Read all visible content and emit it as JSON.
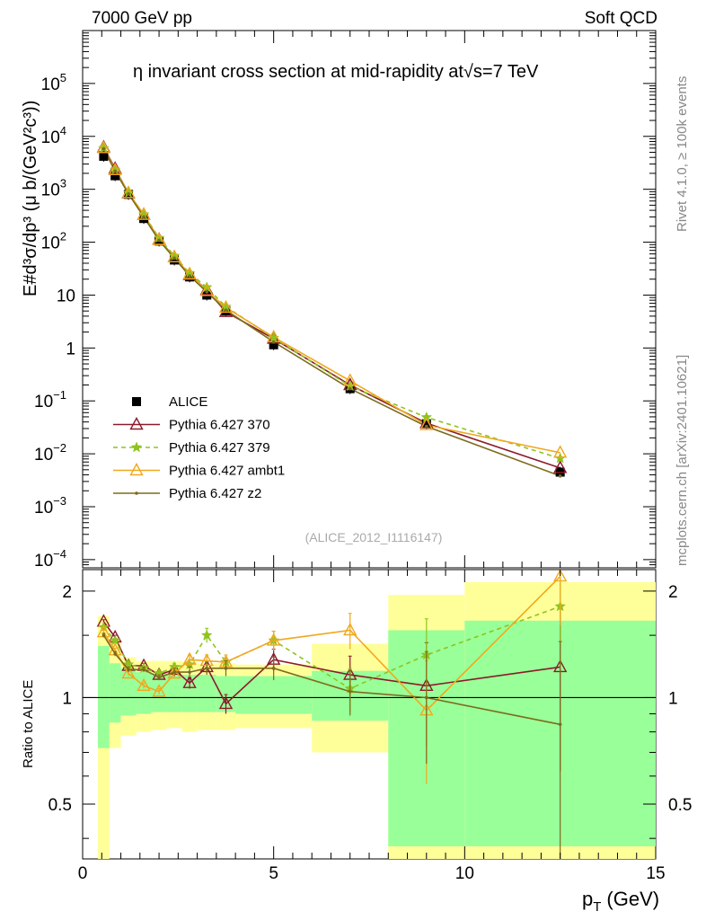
{
  "header": {
    "left": "7000 GeV pp",
    "right": "Soft QCD"
  },
  "side_text": {
    "rivet": "Rivet 4.1.0, ≥ 100k events",
    "mcplots": "mcplots.cern.ch [arXiv:2401.10621]"
  },
  "chart_data": {
    "type": "line",
    "title": "η invariant cross section at mid-rapidity at√s=7 TeV",
    "watermark": "(ALICE_2012_I1116147)",
    "xlabel_main": "p",
    "xlabel_sub": "T",
    "xlabel_unit": "(GeV)",
    "ylabel_top": "E#d³σ/dp³ (μ b/(GeV²c³))",
    "ylabel_ratio": "Ratio to ALICE",
    "xlim": [
      0,
      15
    ],
    "ylim": [
      7e-05,
      1000000
    ],
    "ylim_ratio": [
      0.35,
      2.3
    ],
    "x_ticks": [
      "0",
      "5",
      "10",
      "15"
    ],
    "y_ticks_main": [
      {
        "base": "10",
        "exp": "5",
        "value": 100000
      },
      {
        "base": "10",
        "exp": "4",
        "value": 10000
      },
      {
        "base": "10",
        "exp": "3",
        "value": 1000
      },
      {
        "base": "10",
        "exp": "2",
        "value": 100
      },
      {
        "base": "10",
        "exp": "",
        "value": 10
      },
      {
        "base": "1",
        "exp": "",
        "value": 1
      },
      {
        "base": "10",
        "exp": "−1",
        "value": 0.1
      },
      {
        "base": "10",
        "exp": "−2",
        "value": 0.01
      },
      {
        "base": "10",
        "exp": "−3",
        "value": 0.001
      },
      {
        "base": "10",
        "exp": "−4",
        "value": 0.0001
      }
    ],
    "y_ticks_ratio": [
      "0.5",
      "1",
      "2"
    ],
    "x": [
      0.55,
      0.85,
      1.2,
      1.6,
      2.0,
      2.4,
      2.8,
      3.25,
      3.75,
      5.0,
      7.0,
      9.0,
      12.5
    ],
    "data": {
      "name": "ALICE",
      "values": [
        4200,
        1800,
        800,
        280,
        105,
        46,
        22,
        10,
        5,
        1.15,
        0.17,
        0.037,
        0.0045
      ]
    },
    "bands": [
      {
        "x0": 0.4,
        "x1": 0.7,
        "green": [
          0.72,
          1.4
        ],
        "yellow": [
          0.35,
          1.7
        ]
      },
      {
        "x0": 0.7,
        "x1": 1.0,
        "green": [
          0.85,
          1.25
        ],
        "yellow": [
          0.72,
          1.45
        ]
      },
      {
        "x0": 1.0,
        "x1": 1.4,
        "green": [
          0.89,
          1.21
        ],
        "yellow": [
          0.78,
          1.3
        ]
      },
      {
        "x0": 1.4,
        "x1": 1.8,
        "green": [
          0.9,
          1.18
        ],
        "yellow": [
          0.8,
          1.27
        ]
      },
      {
        "x0": 1.8,
        "x1": 2.2,
        "green": [
          0.91,
          1.17
        ],
        "yellow": [
          0.81,
          1.27
        ]
      },
      {
        "x0": 2.2,
        "x1": 2.6,
        "green": [
          0.91,
          1.17
        ],
        "yellow": [
          0.82,
          1.27
        ]
      },
      {
        "x0": 2.6,
        "x1": 3.0,
        "green": [
          0.91,
          1.16
        ],
        "yellow": [
          0.8,
          1.26
        ]
      },
      {
        "x0": 3.0,
        "x1": 3.5,
        "green": [
          0.91,
          1.16
        ],
        "yellow": [
          0.81,
          1.25
        ]
      },
      {
        "x0": 3.5,
        "x1": 4.0,
        "green": [
          0.91,
          1.15
        ],
        "yellow": [
          0.81,
          1.25
        ]
      },
      {
        "x0": 4.0,
        "x1": 6.0,
        "green": [
          0.9,
          1.15
        ],
        "yellow": [
          0.82,
          1.24
        ]
      },
      {
        "x0": 6.0,
        "x1": 8.0,
        "green": [
          0.86,
          1.19
        ],
        "yellow": [
          0.7,
          1.42
        ]
      },
      {
        "x0": 8.0,
        "x1": 10.0,
        "green": [
          0.38,
          1.55
        ],
        "yellow": [
          0.35,
          1.95
        ]
      },
      {
        "x0": 10.0,
        "x1": 15.0,
        "green": [
          0.38,
          1.65
        ],
        "yellow": [
          0.35,
          2.12
        ]
      }
    ],
    "series": [
      {
        "name": "Pythia 6.427 370",
        "color": "#8b1a2b",
        "marker": "triangle-open",
        "dash": "",
        "values": [
          6200,
          2450,
          840,
          330,
          112,
          52,
          24,
          12.5,
          4.8,
          1.5,
          0.2,
          0.038,
          0.0054
        ],
        "ratio": [
          1.64,
          1.48,
          1.23,
          1.23,
          1.16,
          1.2,
          1.1,
          1.22,
          0.96,
          1.28,
          1.16,
          1.08,
          1.22
        ],
        "ratio_err": [
          0.02,
          0.02,
          0.02,
          0.02,
          0.02,
          0.03,
          0.04,
          0.05,
          0.06,
          0.09,
          0.15,
          0.35,
          0.6
        ]
      },
      {
        "name": "Pythia 6.427 379",
        "color": "#8fc31f",
        "marker": "star",
        "dash": "5,4",
        "values": [
          6000,
          2350,
          860,
          335,
          120,
          55,
          26,
          14,
          6,
          1.55,
          0.19,
          0.049,
          0.0082
        ],
        "ratio": [
          1.58,
          1.45,
          1.24,
          1.21,
          1.17,
          1.22,
          1.24,
          1.5,
          1.26,
          1.45,
          1.06,
          1.32,
          1.81
        ],
        "ratio_err": [
          0.02,
          0.02,
          0.02,
          0.02,
          0.02,
          0.03,
          0.04,
          0.07,
          0.06,
          0.09,
          0.15,
          0.35,
          0.6
        ]
      },
      {
        "name": "Pythia 6.427 ambt1",
        "color": "#f0a81e",
        "marker": "triangle-open",
        "dash": "",
        "values": [
          6000,
          2300,
          850,
          330,
          110,
          52,
          25,
          12,
          5.8,
          1.6,
          0.24,
          0.035,
          0.0105
        ],
        "ratio": [
          1.53,
          1.36,
          1.17,
          1.08,
          1.04,
          1.17,
          1.28,
          1.27,
          1.26,
          1.45,
          1.55,
          0.92,
          2.2
        ],
        "ratio_err": [
          0.02,
          0.02,
          0.02,
          0.02,
          0.02,
          0.03,
          0.04,
          0.05,
          0.06,
          0.09,
          0.18,
          0.35,
          0.6
        ]
      },
      {
        "name": "Pythia 6.427 z2",
        "color": "#7d6b1d",
        "marker": "dot",
        "dash": "",
        "values": [
          5800,
          2200,
          820,
          300,
          108,
          50,
          23,
          11.5,
          5.2,
          1.3,
          0.17,
          0.033,
          0.0038
        ],
        "ratio": [
          1.5,
          1.33,
          1.2,
          1.2,
          1.14,
          1.18,
          1.18,
          1.21,
          1.21,
          1.21,
          1.04,
          1.0,
          0.84
        ],
        "ratio_err": [
          0.02,
          0.02,
          0.02,
          0.02,
          0.02,
          0.03,
          0.04,
          0.05,
          0.06,
          0.09,
          0.15,
          0.35,
          0.6
        ]
      }
    ]
  }
}
